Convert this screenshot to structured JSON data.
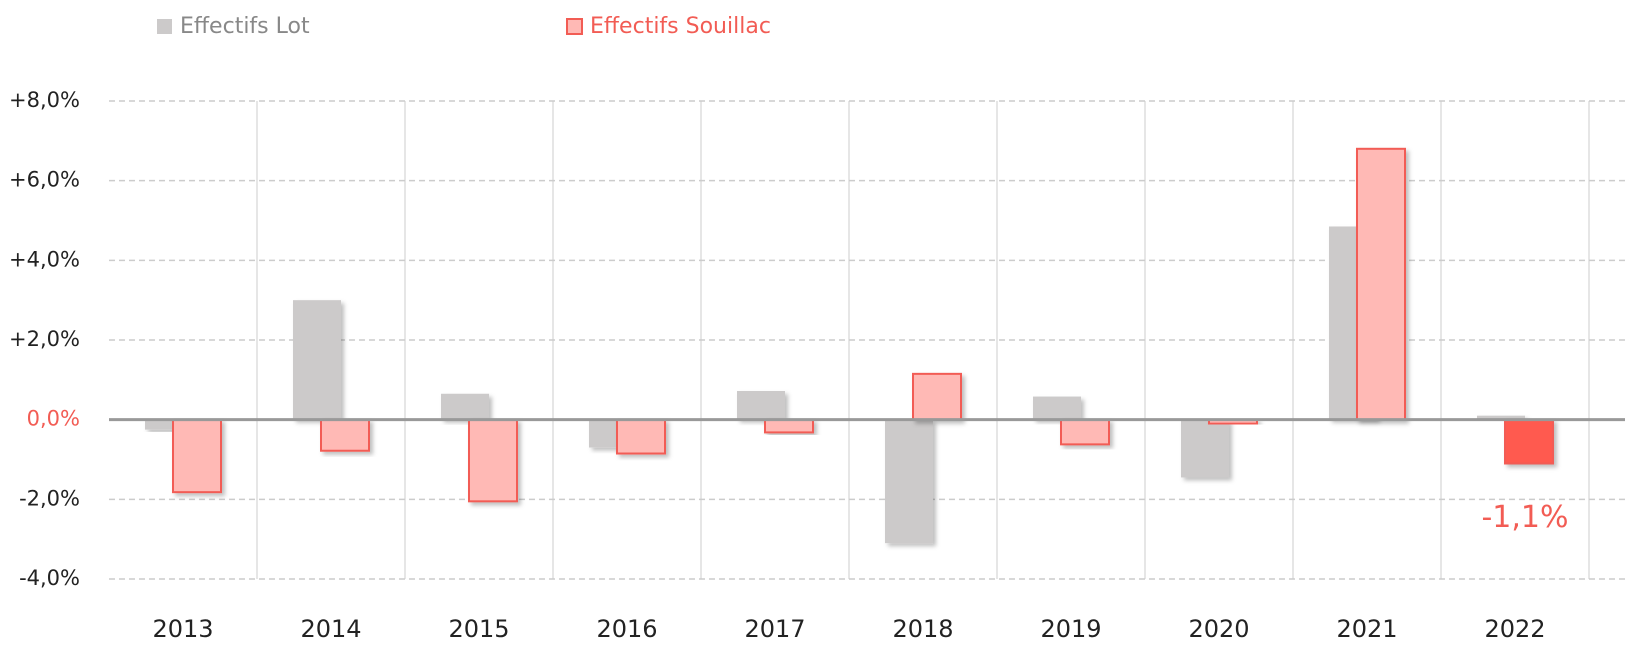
{
  "chart_data": {
    "type": "bar",
    "categories": [
      "2013",
      "2014",
      "2015",
      "2016",
      "2017",
      "2018",
      "2019",
      "2020",
      "2021",
      "2022"
    ],
    "series": [
      {
        "name": "Effectifs Lot",
        "color": "#cccaca",
        "values": [
          -0.25,
          3.0,
          0.65,
          -0.7,
          0.72,
          -3.1,
          0.58,
          -1.45,
          4.85,
          0.1
        ]
      },
      {
        "name": "Effectifs Souillac",
        "color": "#ffb9b5",
        "stroke": "#f25c54",
        "colors": [
          "#ffb9b5",
          "#ffb9b5",
          "#ffb9b5",
          "#ffb9b5",
          "#ffb9b5",
          "#ffb9b5",
          "#ffb9b5",
          "#ffb9b5",
          "#ffb9b5",
          "#ff5a4f"
        ],
        "values": [
          -1.82,
          -0.78,
          -2.05,
          -0.85,
          -0.32,
          1.15,
          -0.62,
          -0.1,
          6.8,
          -1.1
        ],
        "value_labels": [
          null,
          null,
          null,
          null,
          null,
          null,
          null,
          null,
          null,
          "-1,1%"
        ]
      }
    ],
    "ylim": [
      -4,
      8
    ],
    "yticks": [
      {
        "value": -4,
        "label": "-4,0%"
      },
      {
        "value": -2,
        "label": "-2,0%"
      },
      {
        "value": 0,
        "label": "0,0%"
      },
      {
        "value": 2,
        "label": "+2,0%"
      },
      {
        "value": 4,
        "label": "+4,0%"
      },
      {
        "value": 6,
        "label": "+6,0%"
      },
      {
        "value": 8,
        "label": "+8,0%"
      }
    ],
    "grid": true,
    "legend": "top"
  }
}
